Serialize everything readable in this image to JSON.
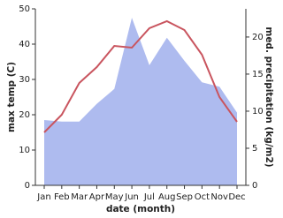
{
  "chart_data": {
    "type": "line_area",
    "categories": [
      "Jan",
      "Feb",
      "Mar",
      "Apr",
      "May",
      "Jun",
      "Jul",
      "Aug",
      "Sep",
      "Oct",
      "Nov",
      "Dec"
    ],
    "x_label": "date (month)",
    "y_label": "max temp (C)",
    "y2_label": "med. precipitation (kg/m2)",
    "series": [
      {
        "name": "max temp",
        "color": "#c9555f",
        "values": [
          15,
          20,
          29,
          33.5,
          39.5,
          39,
          44.5,
          46.5,
          44,
          37,
          25,
          18
        ]
      },
      {
        "name": "precipitation",
        "color": "#aebbef",
        "axis": "y2",
        "values": [
          8.8,
          8.6,
          8.6,
          11,
          13,
          22.6,
          16.2,
          19.9,
          16.8,
          13.9,
          13.3,
          9.8
        ]
      }
    ],
    "ylim": [
      0,
      50
    ],
    "yticks": [
      0,
      10,
      20,
      30,
      40,
      50
    ],
    "y2lim": [
      0,
      23.8
    ],
    "y2ticks": [
      0,
      5,
      10,
      15,
      20
    ]
  }
}
